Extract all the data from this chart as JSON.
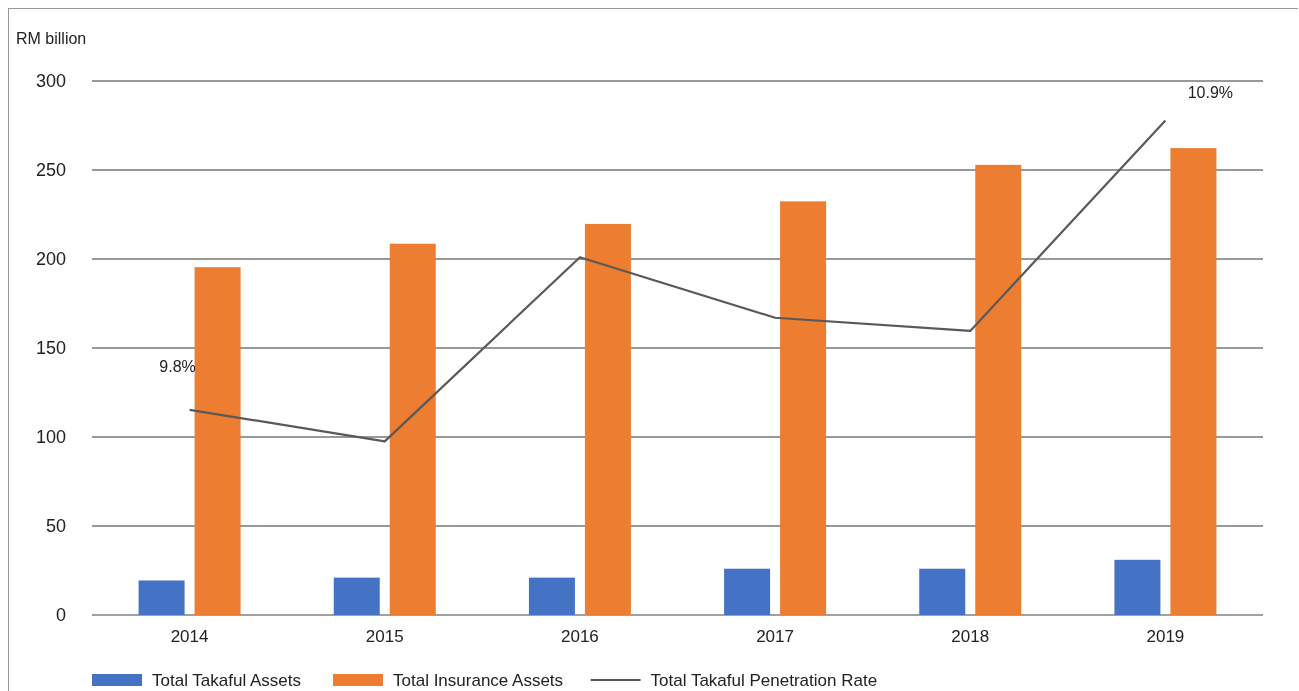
{
  "chart_data": {
    "type": "bar",
    "ylabel": "RM billion",
    "categories": [
      "2014",
      "2015",
      "2016",
      "2017",
      "2018",
      "2019"
    ],
    "series": [
      {
        "name": "Total Takaful Assets",
        "color": "#4472c4",
        "values": [
          19.4,
          21,
          21,
          26,
          26,
          31
        ]
      },
      {
        "name": "Total Insurance Assets",
        "color": "#ed7d31",
        "values": [
          195.4,
          208.6,
          219.7,
          232.4,
          252.9,
          262.3
        ]
      },
      {
        "name": "Total Takaful Penetration Rate",
        "type": "line",
        "axis": "y2",
        "color": "#595959",
        "values": [
          9.8,
          9.68,
          10.38,
          10.15,
          10.1,
          10.9
        ],
        "value_labels": [
          "9.8%",
          null,
          null,
          null,
          null,
          "10.9%"
        ]
      }
    ],
    "ylim": [
      0,
      300
    ],
    "yticks": [
      0,
      50,
      100,
      150,
      200,
      250,
      300
    ],
    "y2lim": [
      9.02,
      11.05
    ],
    "tick_labels": "xy",
    "grid": "y",
    "legend": "bottom",
    "marker": "none",
    "line_style": "solid"
  }
}
